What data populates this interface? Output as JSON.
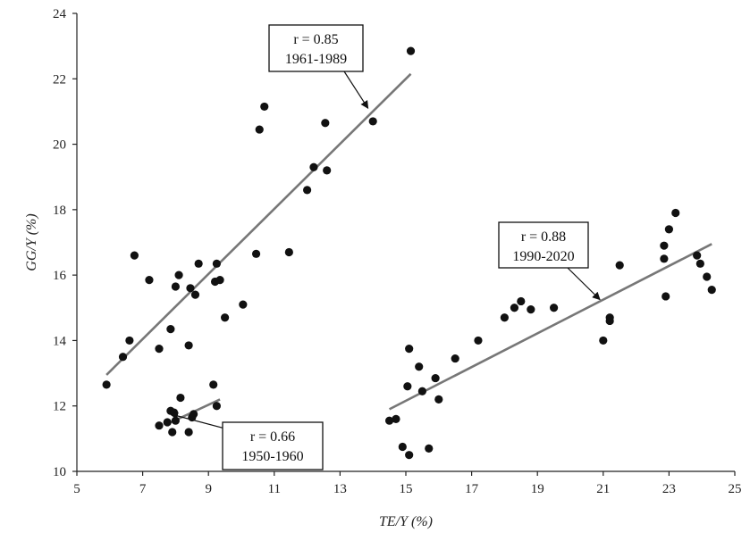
{
  "chart_data": {
    "type": "scatter",
    "xlabel": "TE/Y (%)",
    "ylabel": "GG/Y (%)",
    "xlim": [
      5,
      25
    ],
    "ylim": [
      10,
      24
    ],
    "xticks": [
      "5",
      "7",
      "9",
      "11",
      "13",
      "15",
      "17",
      "19",
      "21",
      "23",
      "25"
    ],
    "yticks": [
      "10",
      "12",
      "14",
      "16",
      "18",
      "20",
      "22",
      "24"
    ],
    "grid": false,
    "colors": {
      "points": "#111111",
      "trend": "#777777"
    },
    "series": [
      {
        "points": [
          [
            7.5,
            11.4
          ],
          [
            7.75,
            11.5
          ],
          [
            7.85,
            11.85
          ],
          [
            7.9,
            11.2
          ],
          [
            7.95,
            11.8
          ],
          [
            8.0,
            11.55
          ],
          [
            8.15,
            12.25
          ],
          [
            8.4,
            11.2
          ],
          [
            8.5,
            11.65
          ],
          [
            8.55,
            11.75
          ],
          [
            9.15,
            12.65
          ],
          [
            9.25,
            12.0
          ]
        ],
        "trend": [
          [
            7.75,
            11.45
          ],
          [
            9.35,
            12.2
          ]
        ],
        "annotation": {
          "line1": "r = 0.66",
          "line2": "1950-1960",
          "arrow_target": [
            7.85,
            11.75
          ]
        }
      },
      {
        "points": [
          [
            5.9,
            12.65
          ],
          [
            6.4,
            13.5
          ],
          [
            6.6,
            14.0
          ],
          [
            6.75,
            16.6
          ],
          [
            7.2,
            15.85
          ],
          [
            7.5,
            13.75
          ],
          [
            7.85,
            14.35
          ],
          [
            8.0,
            15.65
          ],
          [
            8.1,
            16.0
          ],
          [
            8.4,
            13.85
          ],
          [
            8.45,
            15.6
          ],
          [
            8.6,
            15.4
          ],
          [
            8.7,
            16.35
          ],
          [
            9.2,
            15.8
          ],
          [
            9.25,
            16.35
          ],
          [
            9.35,
            15.85
          ],
          [
            9.5,
            14.7
          ],
          [
            10.05,
            15.1
          ],
          [
            10.45,
            16.65
          ],
          [
            10.55,
            20.45
          ],
          [
            10.7,
            21.15
          ],
          [
            11.45,
            16.7
          ],
          [
            12.0,
            18.6
          ],
          [
            12.2,
            19.3
          ],
          [
            12.55,
            20.65
          ],
          [
            12.6,
            19.2
          ],
          [
            14.0,
            20.7
          ],
          [
            15.15,
            22.85
          ]
        ],
        "trend": [
          [
            5.9,
            12.95
          ],
          [
            15.15,
            22.15
          ]
        ],
        "annotation": {
          "line1": "r = 0.85",
          "line2": "1961-1989",
          "arrow_target": [
            13.85,
            21.1
          ]
        }
      },
      {
        "points": [
          [
            14.5,
            11.55
          ],
          [
            14.7,
            11.6
          ],
          [
            14.9,
            10.75
          ],
          [
            15.05,
            12.6
          ],
          [
            15.1,
            13.75
          ],
          [
            15.1,
            10.5
          ],
          [
            15.4,
            13.2
          ],
          [
            15.5,
            12.45
          ],
          [
            15.7,
            10.7
          ],
          [
            15.9,
            12.85
          ],
          [
            16.0,
            12.2
          ],
          [
            16.5,
            13.45
          ],
          [
            17.2,
            14.0
          ],
          [
            18.0,
            14.7
          ],
          [
            18.3,
            15.0
          ],
          [
            18.5,
            15.2
          ],
          [
            18.8,
            14.95
          ],
          [
            19.5,
            15.0
          ],
          [
            21.0,
            14.0
          ],
          [
            21.2,
            14.7
          ],
          [
            21.2,
            14.6
          ],
          [
            21.5,
            16.3
          ],
          [
            22.85,
            16.9
          ],
          [
            22.85,
            16.5
          ],
          [
            22.9,
            15.35
          ],
          [
            23.0,
            17.4
          ],
          [
            23.2,
            17.9
          ],
          [
            23.85,
            16.6
          ],
          [
            23.95,
            16.35
          ],
          [
            24.15,
            15.95
          ],
          [
            24.3,
            15.55
          ]
        ],
        "trend": [
          [
            14.5,
            11.9
          ],
          [
            24.3,
            16.95
          ]
        ],
        "annotation": {
          "line1": "r = 0.88",
          "line2": "1990-2020",
          "arrow_target": [
            20.9,
            15.25
          ]
        }
      }
    ]
  }
}
